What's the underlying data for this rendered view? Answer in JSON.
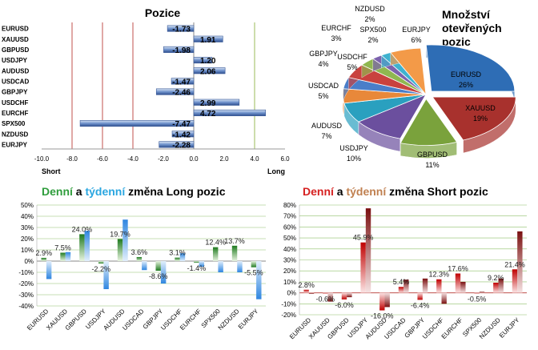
{
  "chart_data": [
    {
      "type": "bar",
      "orientation": "horizontal",
      "title": "Pozice",
      "categories": [
        "EURUSD",
        "XAUUSD",
        "GBPUSD",
        "USDJPY",
        "AUDUSD",
        "USDCAD",
        "GBPJPY",
        "USDCHF",
        "EURCHF",
        "SPX500",
        "NZDUSD",
        "EURJPY"
      ],
      "values": [
        -1.73,
        1.91,
        -1.98,
        1.2,
        2.06,
        -1.47,
        -2.46,
        2.99,
        4.72,
        -7.47,
        -1.42,
        -2.28
      ],
      "labels": [
        "-1.73",
        "1.91",
        "-1.98",
        "1.20",
        "2.06",
        "-1.47",
        "-2.46",
        "2.99",
        "4.72",
        "-7.47",
        "-1.42",
        "-2.28"
      ],
      "xlim": [
        -10,
        6
      ],
      "ticks": [
        "-10.0",
        "-8.0",
        "-6.0",
        "-4.0",
        "-2.0",
        "0.0",
        "2.0",
        "4.0",
        "6.0"
      ],
      "xlabel_left": "Short",
      "xlabel_right": "Long",
      "reference_lines": [
        -8,
        -6,
        -4,
        4
      ],
      "colors": {
        "bar": "#5b7fc4",
        "red_line": "#c0504d",
        "green_line": "#9bbb59"
      }
    },
    {
      "type": "pie",
      "title": "Množství otevřených pozic",
      "slices": [
        {
          "name": "EURUSD",
          "pct": 26,
          "label": "26%",
          "color": "#2e6db5"
        },
        {
          "name": "XAUUSD",
          "pct": 19,
          "label": "19%",
          "color": "#a8312d"
        },
        {
          "name": "GBPUSD",
          "pct": 11,
          "label": "11%",
          "color": "#7aa23c"
        },
        {
          "name": "USDJPY",
          "pct": 10,
          "label": "10%",
          "color": "#6b4f9e"
        },
        {
          "name": "AUDUSD",
          "pct": 7,
          "label": "7%",
          "color": "#2aa0bf"
        },
        {
          "name": "USDCAD",
          "pct": 5,
          "label": "5%",
          "color": "#e8883a"
        },
        {
          "name": "GBPJPY",
          "pct": 4,
          "label": "4%",
          "color": "#4a7ec9"
        },
        {
          "name": "USDCHF",
          "pct": 5,
          "label": "5%",
          "color": "#c9423e"
        },
        {
          "name": "EURCHF",
          "pct": 3,
          "label": "3%",
          "color": "#8fb750"
        },
        {
          "name": "SPX500",
          "pct": 2,
          "label": "2%",
          "color": "#7c62ad"
        },
        {
          "name": "NZDUSD",
          "pct": 2,
          "label": "2%",
          "color": "#3fb2cf"
        },
        {
          "name": "EURJPY",
          "pct": 6,
          "label": "6%",
          "color": "#f39a48"
        }
      ]
    },
    {
      "type": "bar",
      "title_parts": [
        "Denní",
        " a ",
        "týdenní",
        " změna Long pozic"
      ],
      "title_colors": [
        "#2f9d3c",
        "#000000",
        "#2aa6e0",
        "#000000"
      ],
      "categories": [
        "EURUSD",
        "XAUUSD",
        "GBPUSD",
        "USDJPY",
        "AUDUSD",
        "USDCAD",
        "GBPJPY",
        "USDCHF",
        "EURCHF",
        "SPX500",
        "NZDUSD",
        "EURJPY"
      ],
      "series": [
        {
          "name": "Denní",
          "color": "#2f8a2f",
          "values": [
            2.9,
            7.5,
            24.0,
            -2.2,
            19.7,
            3.6,
            -8.6,
            3.1,
            -1.4,
            12.4,
            13.7,
            -5.5
          ],
          "labels": [
            "2.9%",
            "7.5%",
            "24.0%",
            "-2.2%",
            "19.7%",
            "3.6%",
            "-8.6%",
            "3.1%",
            "-1.4%",
            "12.4%",
            "13.7%",
            "-5.5%"
          ]
        },
        {
          "name": "Týdenní",
          "color": "#3d8fe6",
          "values": [
            -16,
            8,
            27,
            -25,
            37,
            -8,
            -20,
            7,
            -5,
            -10,
            -10,
            -34
          ]
        }
      ],
      "ylim": [
        -40,
        50
      ],
      "ticks": [
        "-40%",
        "-30%",
        "-20%",
        "-10%",
        "0%",
        "10%",
        "20%",
        "30%",
        "40%",
        "50%"
      ]
    },
    {
      "type": "bar",
      "title_parts": [
        "Denní",
        " a ",
        "týdenní",
        " změna Short pozic"
      ],
      "title_colors": [
        "#d62020",
        "#000000",
        "#c08050",
        "#000000"
      ],
      "categories": [
        "EURUSD",
        "XAUUSD",
        "GBPUSD",
        "USDJPY",
        "AUDUSD",
        "USDCAD",
        "GBPJPY",
        "USDCHF",
        "EURCHF",
        "SPX500",
        "NZDUSD",
        "EURJPY"
      ],
      "series": [
        {
          "name": "Denní",
          "color": "#c00000",
          "values": [
            2.8,
            -0.6,
            -6.0,
            45.9,
            -16.0,
            5.4,
            -6.4,
            12.3,
            17.6,
            -0.5,
            9.2,
            21.4
          ],
          "labels": [
            "2.8%",
            "-0.6%",
            "-6.0%",
            "45.9%",
            "-16.0%",
            "5.4%",
            "-6.4%",
            "12.3%",
            "17.6%",
            "-0.5%",
            "9.2%",
            "21.4%"
          ]
        },
        {
          "name": "Týdenní",
          "color": "#8b1a1a",
          "values": [
            -1,
            -8,
            -4,
            77,
            -13,
            12,
            13,
            -10,
            10,
            1,
            13,
            56
          ]
        }
      ],
      "ylim": [
        -20,
        80
      ],
      "ticks": [
        "-20%",
        "-10%",
        "0%",
        "10%",
        "20%",
        "30%",
        "40%",
        "50%",
        "60%",
        "70%",
        "80%"
      ]
    }
  ]
}
